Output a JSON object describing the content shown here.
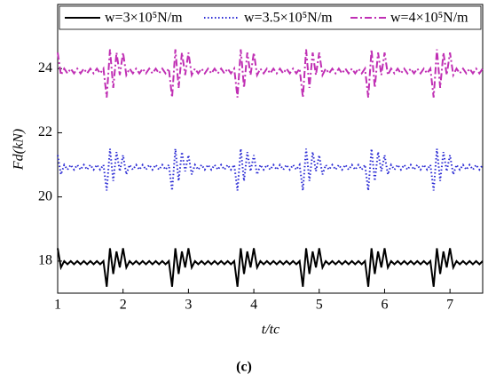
{
  "chart_data": {
    "type": "line",
    "x_label": "t/tc",
    "y_label": "Fd(kN)",
    "caption": "(c)",
    "x": [
      1,
      1.05,
      1.1,
      1.15,
      1.2,
      1.25,
      1.3,
      1.35,
      1.4,
      1.45,
      1.5,
      1.55,
      1.6,
      1.65,
      1.7,
      1.75,
      1.8,
      1.85,
      1.9,
      1.95,
      2,
      2.05,
      2.1,
      2.15,
      2.2,
      2.25,
      2.3,
      2.35,
      2.4,
      2.45,
      2.5,
      2.55,
      2.6,
      2.65,
      2.7,
      2.75,
      2.8,
      2.85,
      2.9,
      2.95,
      3,
      3.05,
      3.1,
      3.15,
      3.2,
      3.25,
      3.3,
      3.35,
      3.4,
      3.45,
      3.5,
      3.55,
      3.6,
      3.65,
      3.7,
      3.75,
      3.8,
      3.85,
      3.9,
      3.95,
      4,
      4.05,
      4.1,
      4.15,
      4.2,
      4.25,
      4.3,
      4.35,
      4.4,
      4.45,
      4.5,
      4.55,
      4.6,
      4.65,
      4.7,
      4.75,
      4.8,
      4.85,
      4.9,
      4.95,
      5,
      5.05,
      5.1,
      5.15,
      5.2,
      5.25,
      5.3,
      5.35,
      5.4,
      5.45,
      5.5,
      5.55,
      5.6,
      5.65,
      5.7,
      5.75,
      5.8,
      5.85,
      5.9,
      5.95,
      6,
      6.05,
      6.1,
      6.15,
      6.2,
      6.25,
      6.3,
      6.35,
      6.4,
      6.45,
      6.5,
      6.55,
      6.6,
      6.65,
      6.7,
      6.75,
      6.8,
      6.85,
      6.9,
      6.95,
      7,
      7.05,
      7.1,
      7.15,
      7.2,
      7.25,
      7.3,
      7.35,
      7.4,
      7.45,
      7.5
    ],
    "series": [
      {
        "name": "w=3×10⁵N/m",
        "color": "#000000",
        "dash": "none",
        "values": [
          18.4,
          17.8,
          18,
          17.9,
          18,
          17.9,
          18,
          17.9,
          18,
          17.9,
          18,
          17.9,
          18,
          17.9,
          18,
          17.2,
          18.4,
          17.6,
          18.3,
          17.8,
          18.4,
          17.8,
          18,
          17.9,
          18,
          17.9,
          18,
          17.9,
          18,
          17.9,
          18,
          17.9,
          18,
          17.9,
          18,
          17.2,
          18.4,
          17.6,
          18.3,
          17.8,
          18.4,
          17.8,
          18,
          17.9,
          18,
          17.9,
          18,
          17.9,
          18,
          17.9,
          18,
          17.9,
          18,
          17.9,
          18,
          17.2,
          18.4,
          17.6,
          18.3,
          17.8,
          18.4,
          17.8,
          18,
          17.9,
          18,
          17.9,
          18,
          17.9,
          18,
          17.9,
          18,
          17.9,
          18,
          17.9,
          18,
          17.2,
          18.4,
          17.6,
          18.3,
          17.8,
          18.4,
          17.8,
          18,
          17.9,
          18,
          17.9,
          18,
          17.9,
          18,
          17.9,
          18,
          17.9,
          18,
          17.9,
          18,
          17.2,
          18.4,
          17.6,
          18.3,
          17.8,
          18.4,
          17.8,
          18,
          17.9,
          18,
          17.9,
          18,
          17.9,
          18,
          17.9,
          18,
          17.9,
          18,
          17.9,
          18,
          17.2,
          18.4,
          17.6,
          18.3,
          17.8,
          18.4,
          17.8,
          18,
          17.9,
          18,
          17.9,
          18,
          17.9,
          18,
          17.9,
          18
        ]
      },
      {
        "name": "w=3.5×10⁵N/m",
        "color": "#2a2ad4",
        "dash": "1.5 2.5",
        "values": [
          21.3,
          20.7,
          21,
          20.85,
          21,
          20.85,
          21,
          20.85,
          21,
          20.85,
          21,
          20.85,
          21,
          20.85,
          21,
          20.2,
          21.5,
          20.5,
          21.4,
          20.8,
          21.3,
          20.7,
          21,
          20.85,
          21,
          20.85,
          21,
          20.85,
          21,
          20.85,
          21,
          20.85,
          21,
          20.85,
          21,
          20.2,
          21.5,
          20.5,
          21.4,
          20.8,
          21.3,
          20.7,
          21,
          20.85,
          21,
          20.85,
          21,
          20.85,
          21,
          20.85,
          21,
          20.85,
          21,
          20.85,
          21,
          20.2,
          21.5,
          20.5,
          21.4,
          20.8,
          21.3,
          20.7,
          21,
          20.85,
          21,
          20.85,
          21,
          20.85,
          21,
          20.85,
          21,
          20.85,
          21,
          20.85,
          21,
          20.2,
          21.5,
          20.5,
          21.4,
          20.8,
          21.3,
          20.7,
          21,
          20.85,
          21,
          20.85,
          21,
          20.85,
          21,
          20.85,
          21,
          20.85,
          21,
          20.85,
          21,
          20.2,
          21.5,
          20.5,
          21.4,
          20.8,
          21.3,
          20.7,
          21,
          20.85,
          21,
          20.85,
          21,
          20.85,
          21,
          20.85,
          21,
          20.85,
          21,
          20.85,
          21,
          20.2,
          21.5,
          20.5,
          21.4,
          20.8,
          21.3,
          20.7,
          21,
          20.85,
          21,
          20.85,
          21,
          20.85,
          21,
          20.85,
          21
        ]
      },
      {
        "name": "w=4×10⁵N/m",
        "color": "#c030b4",
        "dash": "8 3 2 3",
        "values": [
          24.5,
          23.8,
          24,
          23.85,
          24,
          23.85,
          24,
          23.85,
          24,
          23.85,
          24,
          23.85,
          24,
          23.85,
          24,
          23.1,
          24.6,
          23.4,
          24.5,
          23.8,
          24.5,
          23.8,
          24,
          23.85,
          24,
          23.85,
          24,
          23.85,
          24,
          23.85,
          24,
          23.85,
          24,
          23.85,
          24,
          23.1,
          24.6,
          23.4,
          24.5,
          23.8,
          24.5,
          23.8,
          24,
          23.85,
          24,
          23.85,
          24,
          23.85,
          24,
          23.85,
          24,
          23.85,
          24,
          23.85,
          24,
          23.1,
          24.6,
          23.4,
          24.5,
          23.8,
          24.5,
          23.8,
          24,
          23.85,
          24,
          23.85,
          24,
          23.85,
          24,
          23.85,
          24,
          23.85,
          24,
          23.85,
          24,
          23.1,
          24.6,
          23.4,
          24.5,
          23.8,
          24.5,
          23.8,
          24,
          23.85,
          24,
          23.85,
          24,
          23.85,
          24,
          23.85,
          24,
          23.85,
          24,
          23.85,
          24,
          23.1,
          24.6,
          23.4,
          24.5,
          23.8,
          24.5,
          23.8,
          24,
          23.85,
          24,
          23.85,
          24,
          23.85,
          24,
          23.85,
          24,
          23.85,
          24,
          23.85,
          24,
          23.1,
          24.6,
          23.4,
          24.5,
          23.8,
          24.5,
          23.8,
          24,
          23.85,
          24,
          23.85,
          24,
          23.85,
          24,
          23.85,
          24
        ]
      }
    ],
    "xlim": [
      1,
      7.5
    ],
    "xticks": [
      1,
      2,
      3,
      4,
      5,
      6,
      7
    ],
    "ylim": [
      17,
      26
    ],
    "yticks": [
      18,
      20,
      22,
      24
    ],
    "grid": false,
    "legend": "top"
  }
}
